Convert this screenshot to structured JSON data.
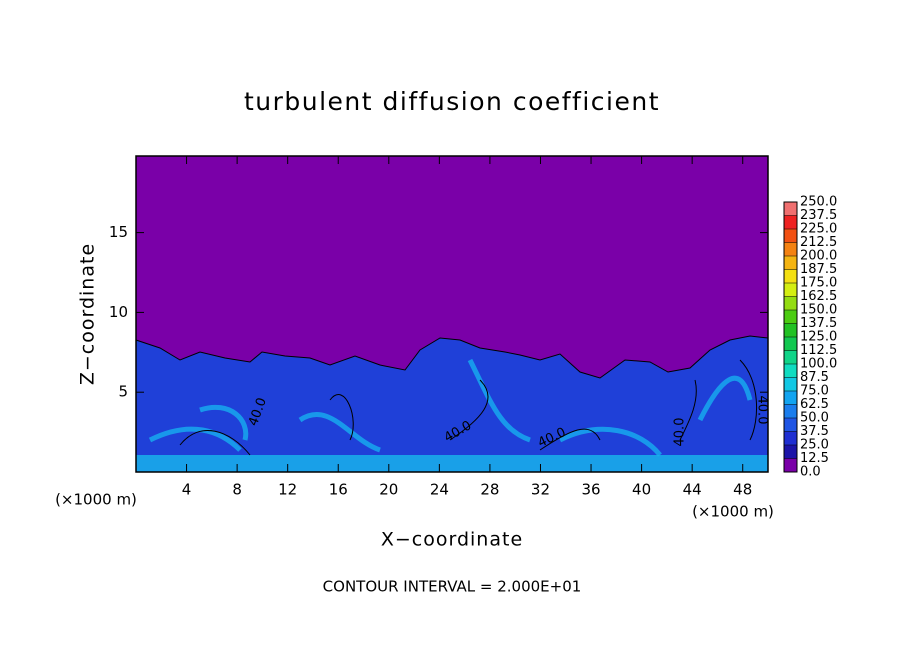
{
  "chart_data": {
    "type": "contour",
    "title": "turbulent diffusion coefficient",
    "xlabel": "X−coordinate",
    "ylabel": "Z−coordinate",
    "x_unit_labels": [
      "(×1000 m)",
      "(×1000 m)"
    ],
    "footer": "CONTOUR INTERVAL = 2.000E+01",
    "contour_labels": [
      "40.0",
      "40.0",
      "40.0",
      "40.0",
      "40.0"
    ],
    "xlim": [
      0,
      50
    ],
    "xticks": [
      4,
      8,
      12,
      16,
      20,
      24,
      28,
      32,
      36,
      40,
      44,
      48
    ],
    "ylim": [
      0,
      19.8
    ],
    "yticks": [
      5,
      10,
      15
    ],
    "colorbar": {
      "levels": [
        {
          "value": 0,
          "label": "0.0"
        },
        {
          "value": 12.5,
          "label": "12.5"
        },
        {
          "value": 25,
          "label": "25.0"
        },
        {
          "value": 37.5,
          "label": "37.5"
        },
        {
          "value": 50,
          "label": "50.0"
        },
        {
          "value": 62.5,
          "label": "62.5"
        },
        {
          "value": 75,
          "label": "75.0"
        },
        {
          "value": 87.5,
          "label": "87.5"
        },
        {
          "value": 100,
          "label": "100.0"
        },
        {
          "value": 112.5,
          "label": "112.5"
        },
        {
          "value": 125,
          "label": "125.0"
        },
        {
          "value": 137.5,
          "label": "137.5"
        },
        {
          "value": 150,
          "label": "150.0"
        },
        {
          "value": 162.5,
          "label": "162.5"
        },
        {
          "value": 175,
          "label": "175.0"
        },
        {
          "value": 187.5,
          "label": "187.5"
        },
        {
          "value": 200,
          "label": "200.0"
        },
        {
          "value": 212.5,
          "label": "212.5"
        },
        {
          "value": 225,
          "label": "225.0"
        },
        {
          "value": 237.5,
          "label": "237.5"
        },
        {
          "value": 250,
          "label": "250.0"
        }
      ],
      "colors": [
        "#7a00a8",
        "#1c14a8",
        "#1f2fd2",
        "#1f55e4",
        "#1a7ded",
        "#12a4f0",
        "#12c8e4",
        "#10dcc0",
        "#10d488",
        "#12c850",
        "#22c224",
        "#4ccc12",
        "#94dc12",
        "#d4ee12",
        "#f4e012",
        "#f4b412",
        "#f48212",
        "#f25012",
        "#ee2222",
        "#f07070"
      ]
    }
  }
}
